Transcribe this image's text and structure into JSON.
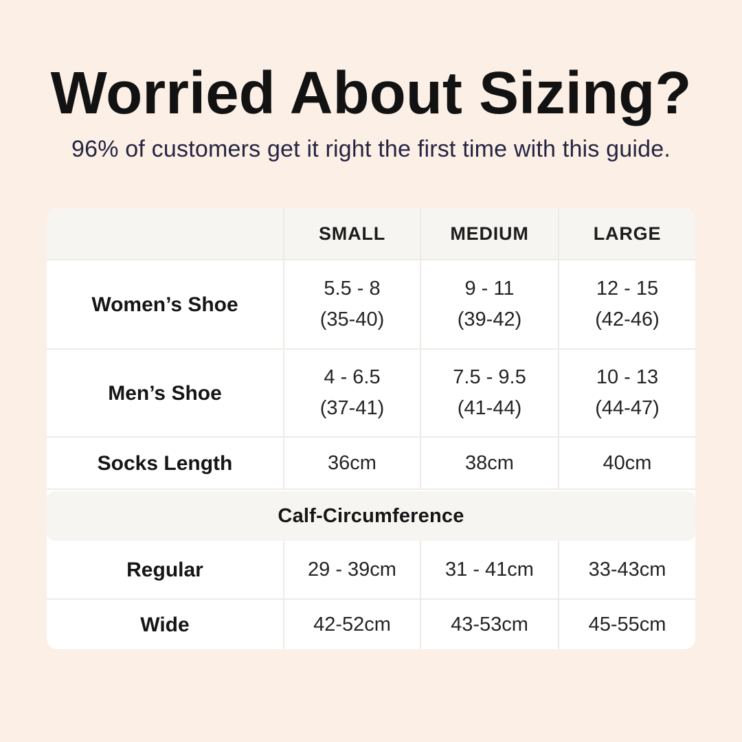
{
  "colors": {
    "background": "#fbefe6",
    "card": "#ffffff",
    "band": "#f6f5f2",
    "divider": "#edebe7",
    "title_ink": "#121212",
    "subtitle_navy": "#252541"
  },
  "header": {
    "title": "Worried About Sizing?",
    "subtitle": "96% of customers get it right the first time with this guide."
  },
  "table": {
    "columns": [
      "",
      "SMALL",
      "MEDIUM",
      "LARGE"
    ],
    "rows": [
      {
        "label": "Women’s Shoe",
        "cells": [
          [
            "5.5 - 8",
            "(35-40)"
          ],
          [
            "9 - 11",
            "(39-42)"
          ],
          [
            "12 - 15",
            "(42-46)"
          ]
        ]
      },
      {
        "label": "Men’s Shoe",
        "cells": [
          [
            "4 - 6.5",
            "(37-41)"
          ],
          [
            "7.5 - 9.5",
            "(41-44)"
          ],
          [
            "10 - 13",
            "(44-47)"
          ]
        ]
      },
      {
        "label": "Socks Length",
        "cells": [
          [
            "36cm"
          ],
          [
            "38cm"
          ],
          [
            "40cm"
          ]
        ]
      }
    ],
    "section_title": "Calf-Circumference",
    "section_rows": [
      {
        "label": "Regular",
        "cells": [
          "29 - 39cm",
          "31 - 41cm",
          "33-43cm"
        ]
      },
      {
        "label": "Wide",
        "cells": [
          "42-52cm",
          "43-53cm",
          "45-55cm"
        ]
      }
    ]
  },
  "chart_data": {
    "type": "table",
    "title": "Worried About Sizing?",
    "subtitle": "96% of customers get it right the first time with this guide.",
    "columns": [
      "",
      "SMALL",
      "MEDIUM",
      "LARGE"
    ],
    "rows": [
      {
        "label": "Women’s Shoe",
        "values": [
          "5.5 - 8 (35-40)",
          "9 - 11 (39-42)",
          "12 - 15 (42-46)"
        ]
      },
      {
        "label": "Men’s Shoe",
        "values": [
          "4 - 6.5 (37-41)",
          "7.5 - 9.5 (41-44)",
          "10 - 13 (44-47)"
        ]
      },
      {
        "label": "Socks Length",
        "values": [
          "36cm",
          "38cm",
          "40cm"
        ]
      },
      {
        "label": "Calf-Circumference",
        "values": [
          "",
          "",
          ""
        ],
        "section_header": true
      },
      {
        "label": "Regular",
        "values": [
          "29 - 39cm",
          "31 - 41cm",
          "33-43cm"
        ]
      },
      {
        "label": "Wide",
        "values": [
          "42-52cm",
          "43-53cm",
          "45-55cm"
        ]
      }
    ]
  }
}
